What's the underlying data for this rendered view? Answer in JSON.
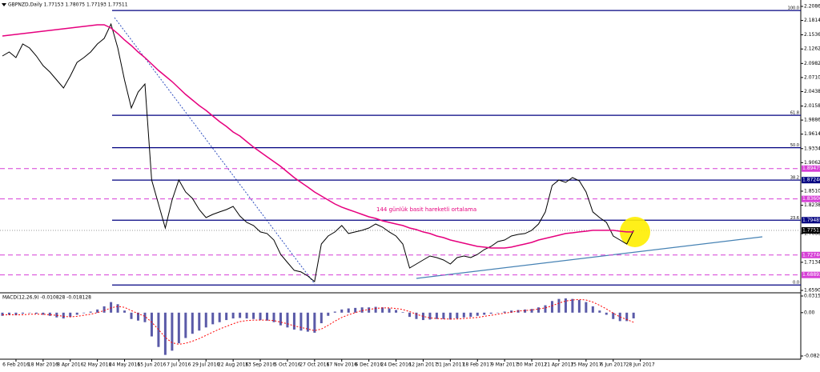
{
  "chart_data": [
    {
      "type": "line",
      "title": "GBPNZD,Daily  1.77153 1.78075 1.77193 1.77511",
      "categories": [
        null,
        null,
        "6 Feb 2016",
        null,
        null,
        null,
        "18 Mar 2016",
        null,
        null,
        null,
        "8 Apr 2016",
        null,
        null,
        null,
        "2 May 2016",
        null,
        null,
        null,
        "24 May 2016",
        null,
        null,
        null,
        "15 Jun 2016",
        null,
        null,
        null,
        "7 Jul 2016",
        null,
        null,
        null,
        "29 Jul 2016",
        null,
        null,
        null,
        "22 Aug 2016",
        null,
        null,
        null,
        "13 Sep 2016",
        null,
        null,
        null,
        "5 Oct 2016",
        null,
        null,
        null,
        "27 Oct 2016",
        null,
        null,
        null,
        "17 Nov 2016",
        null,
        null,
        null,
        "6 Dec 2016",
        null,
        null,
        null,
        "24 Dec 2016",
        null,
        null,
        null,
        "12 Jan 2017",
        null,
        null,
        null,
        "31 Jan 2017",
        null,
        null,
        null,
        "18 Feb 2017",
        null,
        null,
        null,
        "9 Mar 2017",
        null,
        null,
        null,
        "30 Mar 2017",
        null,
        null,
        null,
        "21 Apr 2017",
        null,
        null,
        null,
        "15 May 2017",
        null,
        null,
        null,
        "6 Jun 2017",
        null,
        null,
        null,
        "28 Jun 2017",
        null
      ],
      "series": [
        {
          "color": "#000000",
          "values": [
            2.1126,
            2.1204,
            2.1095,
            2.1358,
            2.1281,
            2.1126,
            2.094,
            2.0817,
            2.0662,
            2.0507,
            2.0739,
            2.1002,
            2.1095,
            2.1204,
            2.1358,
            2.1467,
            2.1745,
            2.1281,
            2.0662,
            2.012,
            2.043,
            2.0584,
            1.8727,
            1.8262,
            1.7798,
            1.834,
            1.8727,
            1.8495,
            1.8371,
            1.8154,
            1.7999,
            1.8061,
            1.8108,
            1.8154,
            1.8216,
            1.803,
            1.7906,
            1.7845,
            1.7721,
            1.769,
            1.7566,
            1.7287,
            1.7132,
            1.6978,
            1.6947,
            1.6869,
            1.6761,
            1.7488,
            1.7643,
            1.7721,
            1.7845,
            1.769,
            1.7721,
            1.7752,
            1.7798,
            1.7875,
            1.7814,
            1.7721,
            1.7643,
            1.7488,
            1.7024,
            1.7101,
            1.7179,
            1.7256,
            1.7225,
            1.7179,
            1.7101,
            1.7225,
            1.7256,
            1.7225,
            1.7287,
            1.738,
            1.7442,
            1.7535,
            1.7566,
            1.7643,
            1.7674,
            1.769,
            1.7752,
            1.7875,
            1.8108,
            1.8619,
            1.8727,
            1.868,
            1.8773,
            1.8711,
            1.8495,
            1.8108,
            1.7999,
            1.7906,
            1.7643,
            1.7566,
            1.7488,
            1.77511,
            null,
            null
          ]
        },
        {
          "name": "144 günlük basit hareketli ortalama",
          "color": "#e6007e",
          "values": [
            2.1513,
            2.1529,
            2.1544,
            2.156,
            2.1575,
            2.1591,
            2.1606,
            2.1622,
            2.1637,
            2.1653,
            2.1668,
            2.1684,
            2.1699,
            2.1714,
            2.173,
            2.173,
            2.1668,
            2.156,
            2.1436,
            2.1327,
            2.1204,
            2.1095,
            2.0971,
            2.0848,
            2.0739,
            2.0631,
            2.0507,
            2.0383,
            2.0275,
            2.0166,
            2.0074,
            1.9965,
            1.9857,
            1.9764,
            1.9656,
            1.9578,
            1.947,
            1.9362,
            1.9269,
            1.9176,
            1.9083,
            1.899,
            1.8882,
            1.8773,
            1.868,
            1.8588,
            1.8495,
            1.8417,
            1.834,
            1.8262,
            1.8201,
            1.8154,
            1.8108,
            1.8061,
            1.8015,
            1.7984,
            1.7937,
            1.7906,
            1.7875,
            1.7845,
            1.7798,
            1.7767,
            1.7721,
            1.769,
            1.7643,
            1.7612,
            1.7566,
            1.7535,
            1.7504,
            1.7473,
            1.7442,
            1.7427,
            1.7411,
            1.7411,
            1.7411,
            1.7427,
            1.7458,
            1.7488,
            1.7519,
            1.7566,
            1.7597,
            1.7628,
            1.7659,
            1.769,
            1.7705,
            1.7721,
            1.7736,
            1.7752,
            1.7752,
            1.7752,
            1.7752,
            1.7736,
            1.7721,
            1.7721,
            null,
            null
          ]
        }
      ],
      "ylim": [
        1.659,
        2.2086
      ],
      "yticks": [
        {
          "value": 2.2086,
          "label": "2.20860"
        },
        {
          "value": 2.1814,
          "label": "2.18140"
        },
        {
          "value": 2.1536,
          "label": "2.15360"
        },
        {
          "value": 2.1262,
          "label": "2.12620"
        },
        {
          "value": 2.0982,
          "label": "2.09820"
        },
        {
          "value": 2.071,
          "label": "2.07100"
        },
        {
          "value": 2.0438,
          "label": "2.04380"
        },
        {
          "value": 2.0158,
          "label": "2.01580"
        },
        {
          "value": 1.9886,
          "label": "1.98860"
        },
        {
          "value": 1.9614,
          "label": "1.96140"
        },
        {
          "value": 1.9334,
          "label": "1.93340"
        },
        {
          "value": 1.9062,
          "label": "1.90620"
        },
        {
          "value": 1.851,
          "label": "1.85100"
        },
        {
          "value": 1.8238,
          "label": "1.82380"
        },
        {
          "value": 1.7688,
          "label": "1.76880"
        },
        {
          "value": 1.7134,
          "label": "1.71340"
        },
        {
          "value": 1.659,
          "label": "1.65900"
        }
      ],
      "fib_levels": [
        {
          "value": 2.2007,
          "label": "100.0"
        },
        {
          "value": 1.9978,
          "label": "61.8"
        },
        {
          "value": 1.9351,
          "label": "50.0"
        },
        {
          "value": 1.8724,
          "label": "38.2"
        },
        {
          "value": 1.79485,
          "label": "23.6"
        },
        {
          "value": 1.6695,
          "label": "0.0"
        }
      ],
      "price_tags": [
        {
          "value": 1.89475,
          "label": "1.89475",
          "color": "#d63fd6",
          "line": "dashed"
        },
        {
          "value": 1.8724,
          "label": "1.87240",
          "color": "#000080"
        },
        {
          "value": 1.83606,
          "label": "1.83606",
          "color": "#d63fd6",
          "line": "dashed"
        },
        {
          "value": 1.79485,
          "label": "1.79485",
          "color": "#000080"
        },
        {
          "value": 1.77511,
          "label": "1.77511",
          "color": "#000000",
          "line": "dotted"
        },
        {
          "value": 1.72746,
          "label": "1.72746",
          "color": "#d63fd6",
          "line": "dashed"
        },
        {
          "value": 1.68892,
          "label": "1.68892",
          "color": "#d63fd6",
          "line": "dashed"
        }
      ]
    },
    {
      "type": "bar",
      "title": "MACD(12,26,9) -0.010828 -0.018128",
      "series": [
        {
          "color": "#5a5aa8",
          "values": [
            -0.006,
            -0.004,
            -0.005,
            -0.002,
            0.0,
            -0.002,
            -0.004,
            -0.006,
            -0.009,
            -0.011,
            -0.008,
            -0.004,
            -0.001,
            0.002,
            0.006,
            0.012,
            0.02,
            0.016,
            0.004,
            -0.012,
            -0.015,
            -0.018,
            -0.045,
            -0.065,
            -0.08,
            -0.072,
            -0.058,
            -0.048,
            -0.04,
            -0.034,
            -0.028,
            -0.022,
            -0.018,
            -0.014,
            -0.011,
            -0.01,
            -0.011,
            -0.012,
            -0.014,
            -0.015,
            -0.018,
            -0.024,
            -0.028,
            -0.032,
            -0.034,
            -0.036,
            -0.038,
            -0.02,
            -0.006,
            0.002,
            0.006,
            0.008,
            0.009,
            0.01,
            0.01,
            0.011,
            0.01,
            0.008,
            0.005,
            0.001,
            -0.008,
            -0.012,
            -0.014,
            -0.013,
            -0.012,
            -0.012,
            -0.013,
            -0.011,
            -0.009,
            -0.008,
            -0.006,
            -0.004,
            -0.002,
            0.0,
            0.002,
            0.004,
            0.005,
            0.006,
            0.007,
            0.01,
            0.014,
            0.022,
            0.026,
            0.027,
            0.026,
            0.024,
            0.02,
            0.012,
            0.004,
            -0.004,
            -0.012,
            -0.016,
            -0.016,
            -0.010828,
            null,
            null
          ]
        },
        {
          "color": "#ff0000",
          "style": "dotted",
          "values": [
            -0.004,
            -0.004,
            -0.004,
            -0.004,
            -0.003,
            -0.003,
            -0.003,
            -0.004,
            -0.005,
            -0.007,
            -0.008,
            -0.007,
            -0.005,
            -0.003,
            0.0,
            0.004,
            0.009,
            0.012,
            0.01,
            0.004,
            -0.002,
            -0.007,
            -0.018,
            -0.032,
            -0.047,
            -0.057,
            -0.06,
            -0.058,
            -0.054,
            -0.049,
            -0.043,
            -0.037,
            -0.031,
            -0.026,
            -0.021,
            -0.017,
            -0.015,
            -0.014,
            -0.014,
            -0.014,
            -0.015,
            -0.018,
            -0.021,
            -0.025,
            -0.028,
            -0.031,
            -0.034,
            -0.031,
            -0.024,
            -0.016,
            -0.009,
            -0.004,
            0.0,
            0.004,
            0.006,
            0.008,
            0.009,
            0.009,
            0.008,
            0.006,
            0.002,
            -0.003,
            -0.007,
            -0.01,
            -0.011,
            -0.012,
            -0.012,
            -0.012,
            -0.011,
            -0.01,
            -0.009,
            -0.007,
            -0.005,
            -0.003,
            -0.001,
            0.001,
            0.003,
            0.004,
            0.005,
            0.007,
            0.009,
            0.013,
            0.018,
            0.022,
            0.024,
            0.025,
            0.024,
            0.02,
            0.014,
            0.007,
            -0.001,
            -0.008,
            -0.013,
            -0.018128,
            null,
            null
          ]
        }
      ],
      "ylim": [
        -0.082071,
        0.031538
      ],
      "yticks": [
        0.031538,
        {
          "value": 0,
          "label": "0.00"
        },
        -0.082071
      ]
    }
  ]
}
